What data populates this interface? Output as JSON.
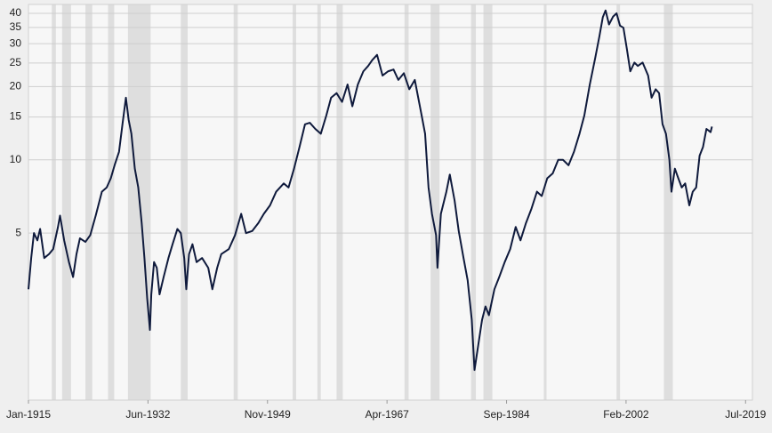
{
  "chart_data": {
    "type": "line",
    "log_scale_y": true,
    "grid": true,
    "xlim": [
      1915,
      2020.5
    ],
    "ylim": [
      1.03,
      43.5
    ],
    "xticks": [
      {
        "value": 1915,
        "label": "Jan-1915"
      },
      {
        "value": 1932.417,
        "label": "Jun-1932"
      },
      {
        "value": 1949.833,
        "label": "Nov-1949"
      },
      {
        "value": 1967.25,
        "label": "Apr-1967"
      },
      {
        "value": 1984.667,
        "label": "Sep-1984"
      },
      {
        "value": 2002.083,
        "label": "Feb-2002"
      },
      {
        "value": 2019.5,
        "label": "Jul-2019"
      }
    ],
    "yticks": [
      5,
      10,
      15,
      20,
      25,
      30,
      35,
      40
    ],
    "shaded_periods": [
      [
        1918.4,
        1919.0
      ],
      [
        1919.9,
        1921.2
      ],
      [
        1923.3,
        1924.3
      ],
      [
        1926.6,
        1927.5
      ],
      [
        1929.5,
        1932.8
      ],
      [
        1937.2,
        1938.2
      ],
      [
        1944.9,
        1945.5
      ],
      [
        1953.5,
        1954.0
      ],
      [
        1957.1,
        1957.6
      ],
      [
        1959.9,
        1960.8
      ],
      [
        1969.8,
        1970.4
      ],
      [
        1973.6,
        1974.9
      ],
      [
        1979.5,
        1980.2
      ],
      [
        1981.3,
        1982.6
      ],
      [
        1990.1,
        1990.5
      ],
      [
        2000.7,
        2001.2
      ],
      [
        2007.6,
        2008.9
      ]
    ],
    "shade_color": "#dedede",
    "x": [
      1915.0,
      1915.4,
      1915.8,
      1916.3,
      1916.7,
      1917.3,
      1918.0,
      1918.6,
      1919.3,
      1919.6,
      1920.2,
      1920.9,
      1921.5,
      1922.0,
      1922.5,
      1923.3,
      1924.0,
      1924.8,
      1925.7,
      1926.4,
      1927.0,
      1927.6,
      1928.2,
      1928.7,
      1929.2,
      1929.6,
      1930.0,
      1930.5,
      1931.0,
      1931.5,
      1931.9,
      1932.3,
      1932.7,
      1932.9,
      1933.3,
      1933.7,
      1934.1,
      1934.7,
      1935.4,
      1936.0,
      1936.7,
      1937.2,
      1937.7,
      1938.0,
      1938.4,
      1938.9,
      1939.5,
      1940.3,
      1941.2,
      1941.8,
      1942.5,
      1943.1,
      1944.2,
      1945.1,
      1946.0,
      1946.7,
      1947.6,
      1948.5,
      1949.3,
      1950.2,
      1951.1,
      1952.2,
      1952.9,
      1953.7,
      1954.5,
      1955.3,
      1956.0,
      1956.8,
      1957.6,
      1958.4,
      1959.1,
      1959.9,
      1960.7,
      1961.5,
      1962.2,
      1963.0,
      1963.8,
      1964.5,
      1965.1,
      1965.8,
      1966.6,
      1967.4,
      1968.2,
      1968.9,
      1969.7,
      1970.5,
      1971.3,
      1971.8,
      1972.3,
      1972.8,
      1973.3,
      1973.8,
      1974.4,
      1974.6,
      1975.1,
      1975.9,
      1976.4,
      1977.1,
      1977.7,
      1978.4,
      1979.0,
      1979.6,
      1980.0,
      1980.5,
      1981.1,
      1981.6,
      1982.1,
      1982.9,
      1983.6,
      1984.4,
      1985.2,
      1986.0,
      1986.7,
      1987.5,
      1988.3,
      1989.1,
      1989.8,
      1990.6,
      1991.4,
      1992.2,
      1992.9,
      1993.7,
      1994.5,
      1995.3,
      1996.0,
      1996.8,
      1997.6,
      1998.2,
      1998.7,
      1999.1,
      1999.6,
      2000.2,
      2000.7,
      2001.2,
      2001.7,
      2002.2,
      2002.7,
      2003.3,
      2003.8,
      2004.5,
      2005.3,
      2005.8,
      2006.4,
      2006.9,
      2007.4,
      2007.9,
      2008.4,
      2008.7,
      2009.2,
      2009.7,
      2010.2,
      2010.7,
      2011.3,
      2011.8,
      2012.3,
      2012.8,
      2013.3,
      2013.8,
      2014.4,
      2014.6
    ],
    "series": [
      {
        "color": "#0f1a3c",
        "values": [
          2.94,
          3.95,
          5.0,
          4.67,
          5.2,
          3.95,
          4.1,
          4.3,
          5.3,
          5.9,
          4.67,
          3.8,
          3.3,
          4.1,
          4.76,
          4.6,
          4.9,
          5.9,
          7.4,
          7.7,
          8.4,
          9.6,
          10.8,
          14.0,
          18.0,
          14.6,
          12.8,
          9.2,
          7.7,
          5.5,
          3.95,
          2.7,
          2.0,
          2.8,
          3.8,
          3.6,
          2.8,
          3.3,
          3.95,
          4.5,
          5.2,
          5.0,
          3.95,
          2.94,
          4.1,
          4.5,
          3.8,
          3.95,
          3.6,
          2.94,
          3.6,
          4.1,
          4.3,
          4.9,
          6.0,
          5.0,
          5.1,
          5.5,
          6.0,
          6.5,
          7.4,
          8.0,
          7.7,
          9.2,
          11.3,
          14.0,
          14.2,
          13.4,
          12.8,
          15.2,
          18.0,
          18.8,
          17.3,
          20.4,
          16.6,
          20.4,
          23.1,
          24.3,
          25.7,
          27.0,
          22.2,
          23.1,
          23.5,
          21.3,
          22.7,
          19.5,
          21.3,
          18.0,
          15.2,
          12.8,
          7.7,
          6.0,
          4.9,
          3.6,
          6.0,
          7.4,
          8.7,
          6.8,
          5.1,
          3.95,
          3.2,
          2.2,
          1.37,
          1.7,
          2.2,
          2.5,
          2.3,
          2.94,
          3.3,
          3.8,
          4.3,
          5.3,
          4.67,
          5.5,
          6.3,
          7.4,
          7.1,
          8.4,
          8.8,
          10.0,
          10.0,
          9.5,
          10.8,
          12.8,
          15.2,
          20.4,
          26.3,
          32.2,
          38.6,
          41.1,
          36.0,
          38.8,
          40.0,
          35.6,
          34.9,
          28.6,
          23.1,
          25.1,
          24.3,
          25.1,
          22.2,
          18.0,
          19.5,
          18.8,
          14.0,
          12.8,
          10.0,
          7.4,
          9.2,
          8.4,
          7.7,
          8.0,
          6.5,
          7.4,
          7.7,
          10.4,
          11.3,
          13.4,
          13.0,
          13.7
        ]
      }
    ]
  }
}
